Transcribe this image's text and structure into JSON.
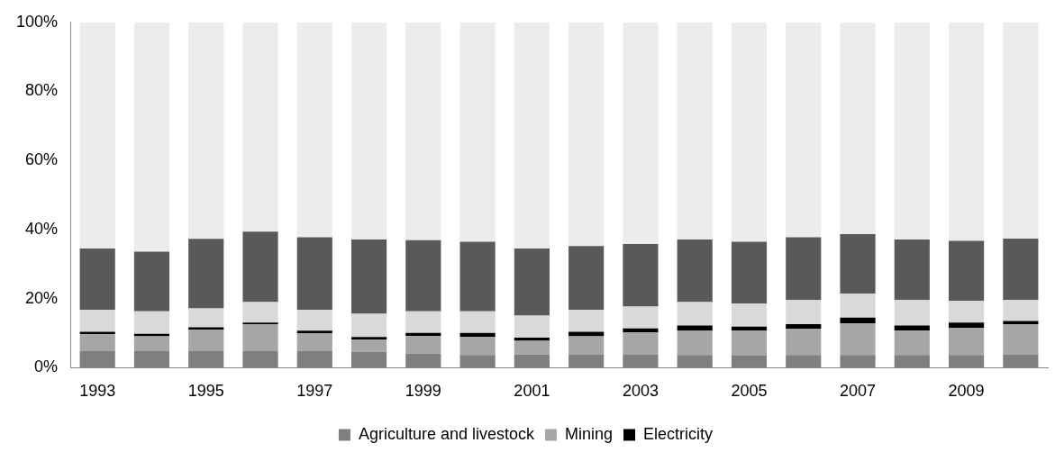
{
  "chart_data": {
    "type": "bar",
    "stacked": true,
    "categories": [
      "1993",
      null,
      "1995",
      null,
      "1997",
      null,
      "1999",
      null,
      "2001",
      null,
      "2003",
      null,
      "2005",
      null,
      "2007",
      null,
      "2009",
      null
    ],
    "ylim": [
      0,
      100
    ],
    "yticks": [
      {
        "value": 0,
        "label": "0%"
      },
      {
        "value": 20,
        "label": "20%"
      },
      {
        "value": 40,
        "label": "40%"
      },
      {
        "value": 60,
        "label": "60%"
      },
      {
        "value": 80,
        "label": "80%"
      },
      {
        "value": 100,
        "label": "100%"
      }
    ],
    "grid": false,
    "legend": "bottom",
    "series": [
      {
        "name": "Agriculture and livestock",
        "color": "#7f7f7f",
        "values": [
          4.8,
          4.8,
          4.8,
          4.8,
          4.8,
          4.6,
          4.1,
          3.7,
          3.8,
          3.9,
          3.9,
          3.7,
          3.5,
          3.7,
          3.7,
          3.7,
          3.7,
          3.9
        ]
      },
      {
        "name": "Mining",
        "color": "#a6a6a6",
        "values": [
          4.9,
          4.3,
          6.2,
          7.8,
          5.2,
          3.6,
          5.1,
          5.3,
          4.0,
          5.2,
          6.3,
          7.1,
          7.2,
          7.6,
          9.2,
          7.0,
          7.9,
          8.7
        ]
      },
      {
        "name": "Electricity",
        "color": "#000000",
        "values": [
          0.7,
          0.7,
          0.7,
          0.5,
          0.7,
          0.7,
          0.9,
          1.1,
          0.9,
          1.3,
          1.2,
          1.4,
          1.2,
          1.3,
          1.6,
          1.5,
          1.5,
          0.9
        ]
      },
      {
        "color": "#d9d9d9",
        "values": [
          6.4,
          6.5,
          5.5,
          5.9,
          6.1,
          6.7,
          6.2,
          6.2,
          6.4,
          6.4,
          6.3,
          6.8,
          6.7,
          7.0,
          6.9,
          7.4,
          6.2,
          6.1
        ]
      },
      {
        "color": "#595959",
        "values": [
          17.7,
          17.3,
          20.1,
          20.4,
          21.0,
          21.5,
          20.6,
          20.2,
          19.4,
          18.4,
          18.1,
          18.1,
          17.9,
          18.2,
          17.3,
          17.5,
          17.4,
          17.8
        ]
      },
      {
        "color": "#ececec",
        "values": [
          65.5,
          66.4,
          62.7,
          60.6,
          62.2,
          62.9,
          63.1,
          63.5,
          65.5,
          64.8,
          64.2,
          62.9,
          63.5,
          62.2,
          61.3,
          62.9,
          63.3,
          62.6
        ]
      }
    ]
  }
}
